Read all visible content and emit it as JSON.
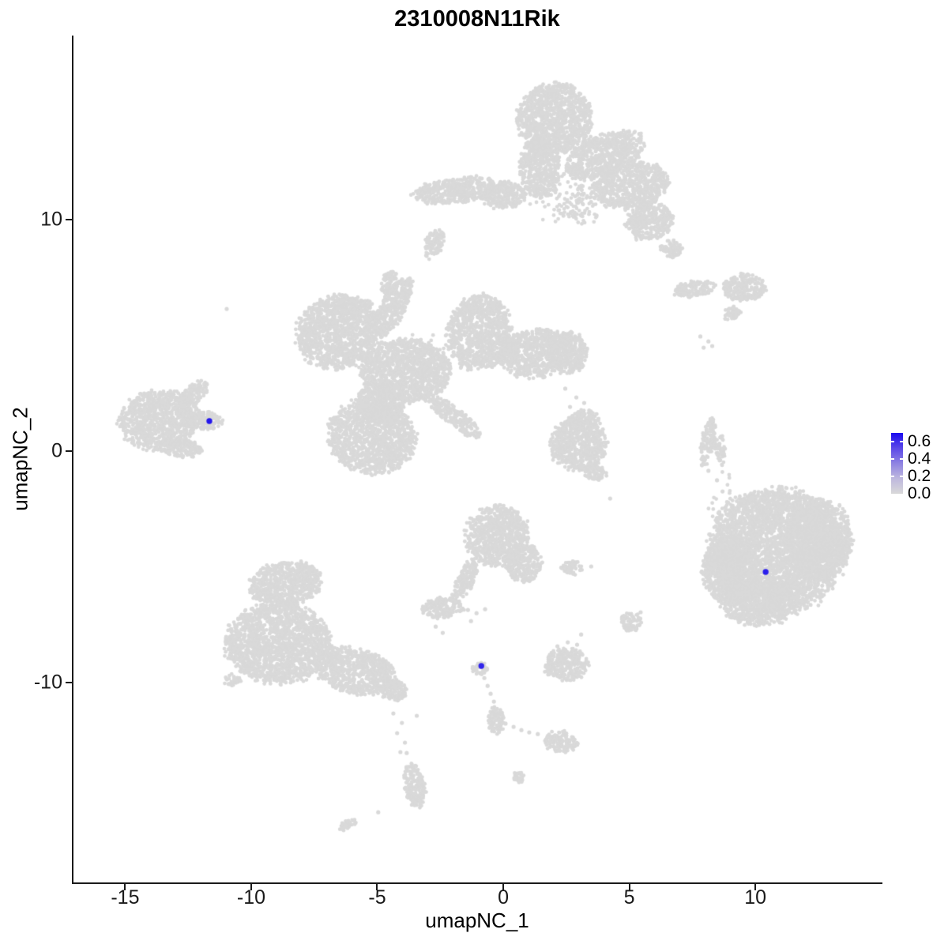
{
  "chart_data": {
    "type": "scatter",
    "subtype": "umap-feature-plot",
    "title": "2310008N11Rik",
    "xlabel": "umapNC_1",
    "ylabel": "umapNC_2",
    "xlim": [
      -17.05,
      14.98
    ],
    "ylim": [
      -18.63,
      17.95
    ],
    "x_ticks": [
      -15,
      -10,
      -5,
      0,
      5,
      10
    ],
    "y_ticks": [
      10,
      0,
      -10
    ],
    "grid": false,
    "legend_position": "right",
    "point_color_low": "#D9D9D9",
    "point_color_high": "#1507EE",
    "colorbar": {
      "min": 0.0,
      "max": 0.7,
      "tick_values": [
        0.6,
        0.4,
        0.2
      ],
      "labels": [
        "0.6",
        "0.4",
        "0.2",
        "0.0"
      ],
      "label_values": [
        0.6,
        0.4,
        0.2,
        0.0
      ]
    },
    "highlighted_cells": [
      {
        "x": -11.66,
        "y": 1.3,
        "value": 0.65
      },
      {
        "x": -0.87,
        "y": -9.28,
        "value": 0.6
      },
      {
        "x": 10.41,
        "y": -5.22,
        "value": 0.62
      }
    ],
    "background_clusters_format": [
      "cx",
      "cy",
      "rx",
      "ry",
      "rot_deg",
      "n_points"
    ],
    "background_clusters": [
      [
        2.03,
        14.37,
        1.47,
        1.5,
        0,
        1034
      ],
      [
        1.47,
        12.25,
        0.81,
        1.3,
        0,
        494
      ],
      [
        4.02,
        12.8,
        1.62,
        0.89,
        -22,
        676
      ],
      [
        5.08,
        11.47,
        1.5,
        0.96,
        -10,
        672
      ],
      [
        -1.84,
        11.26,
        1.71,
        0.55,
        -6,
        440
      ],
      [
        0.0,
        11.06,
        0.87,
        0.58,
        0,
        238
      ],
      [
        5.83,
        9.93,
        0.94,
        0.82,
        -15,
        360
      ],
      [
        2.15,
        11.3,
        1.31,
        1.43,
        0,
        62
      ],
      [
        -2.77,
        8.94,
        0.34,
        0.65,
        25,
        105
      ],
      [
        6.67,
        8.74,
        0.44,
        0.38,
        0,
        77
      ],
      [
        3.05,
        10.61,
        0.94,
        0.85,
        0,
        90
      ],
      [
        -6.51,
        5.15,
        1.71,
        1.57,
        -15,
        1265
      ],
      [
        -4.36,
        6.25,
        0.5,
        1.43,
        28,
        336
      ],
      [
        -3.87,
        3.45,
        1.75,
        1.37,
        0,
        1120
      ],
      [
        -0.94,
        5.15,
        1.25,
        1.6,
        10,
        940
      ],
      [
        1.28,
        4.23,
        1.5,
        1.02,
        -8,
        720
      ],
      [
        2.52,
        4.27,
        0.81,
        0.89,
        0,
        338
      ],
      [
        -5.21,
        0.61,
        1.71,
        1.57,
        10,
        1265
      ],
      [
        -1.96,
        1.5,
        1.31,
        0.38,
        38,
        231
      ],
      [
        -4.83,
        2.15,
        0.94,
        0.89,
        0,
        390
      ],
      [
        -2.84,
        4.06,
        1.43,
        1.23,
        0,
        66
      ],
      [
        -4.52,
        7.3,
        0.28,
        0.55,
        20,
        72
      ],
      [
        -13.68,
        1.33,
        1.56,
        1.26,
        -5,
        925
      ],
      [
        -11.97,
        1.33,
        0.81,
        0.38,
        3,
        143
      ],
      [
        -12.34,
        2.42,
        0.75,
        0.38,
        -38,
        132
      ],
      [
        -12.75,
        0.14,
        0.81,
        0.38,
        5,
        143
      ],
      [
        7.57,
        7.0,
        0.84,
        0.34,
        -8,
        135
      ],
      [
        9.54,
        7.06,
        0.84,
        0.58,
        0,
        230
      ],
      [
        9.07,
        5.97,
        0.37,
        0.27,
        -35,
        48
      ],
      [
        8.1,
        0.38,
        0.25,
        1.02,
        12,
        120
      ],
      [
        8.6,
        0.1,
        0.19,
        0.68,
        -5,
        60
      ],
      [
        2.99,
        0.27,
        1.12,
        1.13,
        0,
        594
      ],
      [
        3.21,
        1.33,
        0.62,
        0.44,
        0,
        130
      ],
      [
        3.58,
        -0.89,
        0.5,
        0.34,
        20,
        80
      ],
      [
        10.85,
        -4.3,
        2.65,
        2.66,
        0,
        3315
      ],
      [
        9.07,
        -5.15,
        1.18,
        1.43,
        0,
        798
      ],
      [
        12.5,
        -3.79,
        1.31,
        1.77,
        0,
        1092
      ],
      [
        10.13,
        -6.52,
        1.5,
        1.02,
        0,
        720
      ],
      [
        8.82,
        -2.36,
        0.69,
        1.54,
        0,
        25
      ],
      [
        -8.63,
        -5.73,
        1.43,
        0.92,
        -8,
        621
      ],
      [
        -8.95,
        -8.29,
        2.06,
        1.71,
        0,
        1650
      ],
      [
        -5.89,
        -9.49,
        1.62,
        0.96,
        12,
        728
      ],
      [
        -4.33,
        -10.34,
        0.53,
        0.44,
        0,
        110
      ],
      [
        -10.75,
        -9.9,
        0.31,
        0.24,
        0,
        35
      ],
      [
        -0.25,
        -3.65,
        1.25,
        1.3,
        -12,
        760
      ],
      [
        0.81,
        -4.85,
        0.72,
        0.82,
        0,
        276
      ],
      [
        -1.5,
        -5.53,
        0.34,
        0.92,
        25,
        149
      ],
      [
        -2.37,
        -6.76,
        0.81,
        0.44,
        -5,
        169
      ],
      [
        -0.94,
        -9.39,
        0.31,
        0.27,
        0,
        40
      ],
      [
        -0.28,
        -11.6,
        0.34,
        0.58,
        0,
        94
      ],
      [
        2.28,
        -12.56,
        0.65,
        0.44,
        10,
        137
      ],
      [
        2.49,
        -9.22,
        0.87,
        0.68,
        0,
        280
      ],
      [
        5.08,
        -7.37,
        0.41,
        0.41,
        0,
        78
      ],
      [
        2.74,
        -5.05,
        0.44,
        0.27,
        0,
        56
      ],
      [
        -3.52,
        -14.44,
        0.41,
        0.99,
        -8,
        189
      ],
      [
        -6.17,
        -16.14,
        0.34,
        0.2,
        -25,
        33
      ],
      [
        0.62,
        -14.06,
        0.25,
        0.24,
        0,
        28
      ]
    ],
    "singleton_points": [
      [
        -10.97,
        6.14
      ],
      [
        4.24,
        -2.05
      ],
      [
        -3.43,
        -11.43
      ],
      [
        7.82,
        4.95
      ],
      [
        8.14,
        4.74
      ],
      [
        7.95,
        4.47
      ],
      [
        8.29,
        4.54
      ],
      [
        8.14,
        -0.85
      ],
      [
        8.35,
        1.06
      ],
      [
        2.46,
        2.7
      ],
      [
        2.9,
        2.32
      ],
      [
        2.65,
        1.91
      ],
      [
        3.21,
        2.08
      ],
      [
        -4.36,
        -11.33
      ],
      [
        -4.02,
        -11.74
      ],
      [
        -4.21,
        -12.18
      ],
      [
        -3.9,
        -12.59
      ],
      [
        -4.08,
        -13.0
      ],
      [
        -2.68,
        -7.58
      ],
      [
        -2.4,
        -7.85
      ],
      [
        -1.4,
        -6.86
      ],
      [
        -1.06,
        -7.0
      ],
      [
        -0.72,
        -6.83
      ],
      [
        -1.28,
        -7.34
      ],
      [
        -0.75,
        -9.8
      ],
      [
        -0.62,
        -10.14
      ],
      [
        -0.5,
        -10.48
      ],
      [
        -0.37,
        -10.82
      ],
      [
        -0.28,
        -11.16
      ],
      [
        0.09,
        -11.77
      ],
      [
        0.41,
        -11.91
      ],
      [
        0.72,
        -12.05
      ],
      [
        1.03,
        -12.15
      ],
      [
        1.37,
        -12.22
      ],
      [
        2.15,
        -8.43
      ],
      [
        2.56,
        -8.26
      ],
      [
        2.93,
        -8.36
      ],
      [
        3.09,
        -7.92
      ],
      [
        -3.83,
        -13.04
      ],
      [
        -4.96,
        -15.6
      ],
      [
        5.45,
        -6.96
      ],
      [
        3.49,
        -4.98
      ],
      [
        8.48,
        -1.26
      ],
      [
        8.7,
        -1.74
      ],
      [
        8.92,
        -2.22
      ],
      [
        8.57,
        -2.63
      ],
      [
        9.01,
        -2.94
      ],
      [
        8.76,
        -3.28
      ]
    ]
  }
}
